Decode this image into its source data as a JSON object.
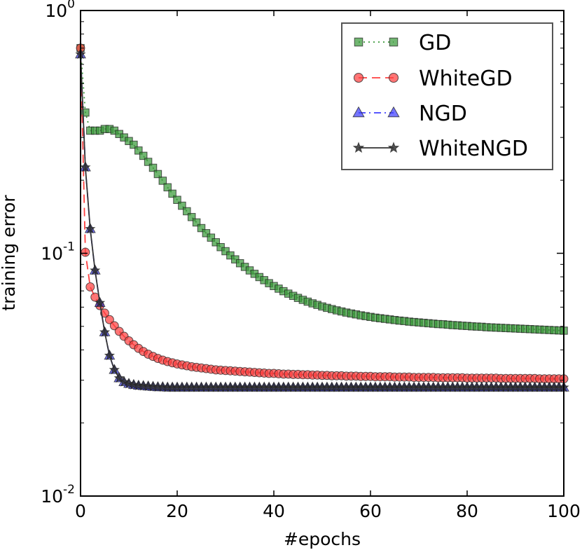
{
  "chart_data": {
    "type": "line",
    "xlabel": "#epochs",
    "ylabel": "training error",
    "xlim": [
      0,
      100
    ],
    "ylim": [
      0.01,
      1
    ],
    "yscale": "log",
    "grid": false,
    "legend": "top-right",
    "x_ticks": [
      {
        "value": 0,
        "label": "0"
      },
      {
        "value": 20,
        "label": "20"
      },
      {
        "value": 40,
        "label": "40"
      },
      {
        "value": 60,
        "label": "60"
      },
      {
        "value": 80,
        "label": "80"
      },
      {
        "value": 100,
        "label": "100"
      }
    ],
    "y_ticks": [
      {
        "value": 1,
        "base": "10",
        "exp": "0"
      },
      {
        "value": 0.1,
        "base": "10",
        "exp": "-1"
      },
      {
        "value": 0.01,
        "base": "10",
        "exp": "-2"
      }
    ],
    "x": [
      0,
      1,
      2,
      3,
      4,
      5,
      6,
      7,
      8,
      9,
      10,
      11,
      12,
      13,
      14,
      15,
      16,
      17,
      18,
      19,
      20,
      21,
      22,
      23,
      24,
      25,
      26,
      27,
      28,
      29,
      30,
      31,
      32,
      33,
      34,
      35,
      36,
      37,
      38,
      39,
      40,
      41,
      42,
      43,
      44,
      45,
      46,
      47,
      48,
      49,
      50,
      51,
      52,
      53,
      54,
      55,
      56,
      57,
      58,
      59,
      60,
      61,
      62,
      63,
      64,
      65,
      66,
      67,
      68,
      69,
      70,
      71,
      72,
      73,
      74,
      75,
      76,
      77,
      78,
      79,
      80,
      81,
      82,
      83,
      84,
      85,
      86,
      87,
      88,
      89,
      90,
      91,
      92,
      93,
      94,
      95,
      96,
      97,
      98,
      99,
      100
    ],
    "series": [
      {
        "name": "GD",
        "color": "#3a9a3a",
        "marker": "square",
        "linestyle": "dotted",
        "values": [
          0.7,
          0.38,
          0.32,
          0.32,
          0.32,
          0.325,
          0.325,
          0.32,
          0.31,
          0.3,
          0.29,
          0.28,
          0.265,
          0.252,
          0.238,
          0.225,
          0.212,
          0.199,
          0.187,
          0.176,
          0.166,
          0.157,
          0.149,
          0.141,
          0.134,
          0.127,
          0.121,
          0.116,
          0.111,
          0.106,
          0.102,
          0.098,
          0.0944,
          0.091,
          0.0879,
          0.085,
          0.0823,
          0.0798,
          0.0775,
          0.0753,
          0.0733,
          0.0715,
          0.0698,
          0.0682,
          0.0668,
          0.0655,
          0.0643,
          0.0632,
          0.0622,
          0.0613,
          0.0604,
          0.0596,
          0.0589,
          0.0582,
          0.0576,
          0.057,
          0.0565,
          0.056,
          0.0555,
          0.0551,
          0.0547,
          0.0543,
          0.054,
          0.0537,
          0.0534,
          0.0531,
          0.0528,
          0.0526,
          0.0523,
          0.0521,
          0.0519,
          0.0517,
          0.0515,
          0.0513,
          0.0511,
          0.051,
          0.0508,
          0.0506,
          0.0505,
          0.0503,
          0.0502,
          0.05,
          0.0499,
          0.0498,
          0.0496,
          0.0495,
          0.0494,
          0.0493,
          0.0492,
          0.0491,
          0.049,
          0.0489,
          0.0488,
          0.0487,
          0.0486,
          0.0485,
          0.0484,
          0.0483,
          0.0482,
          0.0481,
          0.048
        ]
      },
      {
        "name": "WhiteGD",
        "color": "#ff4040",
        "marker": "circle",
        "linestyle": "dashed",
        "values": [
          0.7,
          0.101,
          0.0727,
          0.066,
          0.0609,
          0.0567,
          0.0533,
          0.0503,
          0.0477,
          0.0455,
          0.0436,
          0.042,
          0.0406,
          0.0394,
          0.0384,
          0.0376,
          0.0369,
          0.0363,
          0.0358,
          0.0354,
          0.035,
          0.0347,
          0.0344,
          0.0341,
          0.0339,
          0.0337,
          0.0335,
          0.0333,
          0.0331,
          0.033,
          0.0329,
          0.0328,
          0.0327,
          0.0326,
          0.0325,
          0.0324,
          0.0323,
          0.0322,
          0.0321,
          0.032,
          0.032,
          0.0319,
          0.0318,
          0.0318,
          0.0317,
          0.0317,
          0.0316,
          0.0316,
          0.0315,
          0.0315,
          0.0314,
          0.0314,
          0.0313,
          0.0313,
          0.0313,
          0.0312,
          0.0312,
          0.0312,
          0.0311,
          0.0311,
          0.0311,
          0.031,
          0.031,
          0.031,
          0.031,
          0.0309,
          0.0309,
          0.0309,
          0.0309,
          0.0308,
          0.0308,
          0.0308,
          0.0308,
          0.0308,
          0.0307,
          0.0307,
          0.0307,
          0.0307,
          0.0307,
          0.0307,
          0.0306,
          0.0306,
          0.0306,
          0.0306,
          0.0306,
          0.0306,
          0.0306,
          0.0305,
          0.0305,
          0.0305,
          0.0305,
          0.0305,
          0.0305,
          0.0305,
          0.0305,
          0.0304,
          0.0304,
          0.0304,
          0.0304,
          0.0304,
          0.0304
        ]
      },
      {
        "name": "NGD",
        "color": "#4040ff",
        "marker": "triangle",
        "linestyle": "dashdot",
        "values": [
          0.66,
          0.226,
          0.126,
          0.085,
          0.0625,
          0.0473,
          0.0379,
          0.0331,
          0.0306,
          0.0295,
          0.029,
          0.0287,
          0.0285,
          0.0284,
          0.0283,
          0.0282,
          0.0281,
          0.0281,
          0.028,
          0.028,
          0.028,
          0.028,
          0.028,
          0.028,
          0.028,
          0.028,
          0.028,
          0.028,
          0.028,
          0.028,
          0.028,
          0.028,
          0.028,
          0.028,
          0.028,
          0.028,
          0.028,
          0.028,
          0.028,
          0.028,
          0.028,
          0.028,
          0.028,
          0.028,
          0.028,
          0.028,
          0.028,
          0.028,
          0.028,
          0.028,
          0.028,
          0.028,
          0.028,
          0.028,
          0.028,
          0.028,
          0.028,
          0.028,
          0.028,
          0.028,
          0.028,
          0.028,
          0.028,
          0.028,
          0.028,
          0.028,
          0.028,
          0.028,
          0.028,
          0.028,
          0.028,
          0.028,
          0.028,
          0.028,
          0.028,
          0.028,
          0.028,
          0.028,
          0.028,
          0.028,
          0.028,
          0.028,
          0.028,
          0.028,
          0.028,
          0.028,
          0.028,
          0.028,
          0.028,
          0.028,
          0.028,
          0.028,
          0.028,
          0.028,
          0.028,
          0.028,
          0.028,
          0.028,
          0.028,
          0.028,
          0.028
        ]
      },
      {
        "name": "WhiteNGD",
        "color": "#333333",
        "marker": "star",
        "linestyle": "solid",
        "values": [
          0.66,
          0.226,
          0.126,
          0.085,
          0.0625,
          0.0473,
          0.0379,
          0.0331,
          0.0306,
          0.0295,
          0.029,
          0.0287,
          0.0285,
          0.0284,
          0.0283,
          0.0282,
          0.0281,
          0.0281,
          0.028,
          0.028,
          0.028,
          0.028,
          0.028,
          0.028,
          0.028,
          0.028,
          0.028,
          0.028,
          0.028,
          0.028,
          0.028,
          0.028,
          0.028,
          0.028,
          0.028,
          0.028,
          0.028,
          0.028,
          0.028,
          0.028,
          0.028,
          0.028,
          0.028,
          0.028,
          0.028,
          0.028,
          0.028,
          0.028,
          0.028,
          0.028,
          0.028,
          0.028,
          0.028,
          0.028,
          0.028,
          0.028,
          0.028,
          0.028,
          0.028,
          0.028,
          0.028,
          0.028,
          0.028,
          0.028,
          0.028,
          0.028,
          0.028,
          0.028,
          0.028,
          0.028,
          0.028,
          0.028,
          0.028,
          0.028,
          0.028,
          0.028,
          0.028,
          0.028,
          0.028,
          0.028,
          0.028,
          0.028,
          0.028,
          0.028,
          0.028,
          0.028,
          0.028,
          0.028,
          0.028,
          0.028,
          0.028,
          0.028,
          0.028,
          0.028,
          0.028,
          0.028,
          0.028,
          0.028,
          0.028,
          0.028,
          0.028
        ]
      }
    ]
  }
}
